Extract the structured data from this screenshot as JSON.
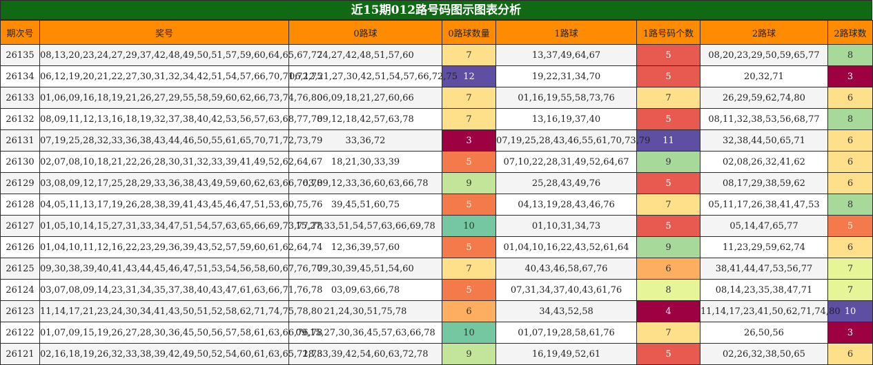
{
  "title": "近15期012路号码图示图表分析",
  "headers": [
    "期次号",
    "奖号",
    "0路球",
    "0路球数量",
    "1路球",
    "1路号码个数",
    "2路球",
    "2路球数"
  ],
  "rows": [
    {
      "issue": "26135",
      "numbers": "08,13,20,23,24,27,29,37,42,48,49,50,51,57,59,60,64,65,67,77",
      "r0": "24,27,42,48,51,57,60",
      "c0": "7",
      "r1": "13,37,49,64,67",
      "c1": "5",
      "r2": "08,20,23,29,50,59,65,77",
      "c2": "8"
    },
    {
      "issue": "26134",
      "numbers": "06,12,19,20,21,22,27,30,31,32,34,42,51,54,57,66,70,71,72,75",
      "r0": "06,12,21,27,30,42,51,54,57,66,72,75",
      "c0": "12",
      "r1": "19,22,31,34,70",
      "c1": "5",
      "r2": "20,32,71",
      "c2": "3"
    },
    {
      "issue": "26133",
      "numbers": "01,06,09,16,18,19,21,26,27,29,55,58,59,60,62,66,73,74,76,80",
      "r0": "06,09,18,21,27,60,66",
      "c0": "7",
      "r1": "01,16,19,55,58,73,76",
      "c1": "7",
      "r2": "26,29,59,62,74,80",
      "c2": "6"
    },
    {
      "issue": "26132",
      "numbers": "08,09,11,12,13,16,18,19,32,37,38,40,42,53,56,57,63,68,77,78",
      "r0": "09,12,18,42,57,63,78",
      "c0": "7",
      "r1": "13,16,19,37,40",
      "c1": "5",
      "r2": "08,11,32,38,53,56,68,77",
      "c2": "8"
    },
    {
      "issue": "26131",
      "numbers": "07,19,25,28,32,33,36,38,43,44,46,50,55,61,65,70,71,72,73,79",
      "r0": "33,36,72",
      "c0": "3",
      "r1": "07,19,25,28,43,46,55,61,70,73,79",
      "c1": "11",
      "r2": "32,38,44,50,65,71",
      "c2": "6"
    },
    {
      "issue": "26130",
      "numbers": "02,07,08,10,18,21,22,26,28,30,31,32,33,39,41,49,52,62,64,67",
      "r0": "18,21,30,33,39",
      "c0": "5",
      "r1": "07,10,22,28,31,49,52,64,67",
      "c1": "9",
      "r2": "02,08,26,32,41,62",
      "c2": "6"
    },
    {
      "issue": "26129",
      "numbers": "03,08,09,12,17,25,28,29,33,36,38,43,49,59,60,62,63,66,76,78",
      "r0": "03,09,12,33,36,60,63,66,78",
      "c0": "9",
      "r1": "25,28,43,49,76",
      "c1": "5",
      "r2": "08,17,29,38,59,62",
      "c2": "6"
    },
    {
      "issue": "26128",
      "numbers": "04,05,11,13,17,19,26,28,38,39,41,43,45,46,47,51,53,60,75,76",
      "r0": "39,45,51,60,75",
      "c0": "5",
      "r1": "04,13,19,28,43,46,76",
      "c1": "7",
      "r2": "05,11,17,26,38,41,47,53",
      "c2": "8"
    },
    {
      "issue": "26127",
      "numbers": "01,05,10,14,15,27,31,33,34,47,51,54,57,63,65,66,69,73,77,78",
      "r0": "15,27,33,51,54,57,63,66,69,78",
      "c0": "10",
      "r1": "01,10,31,34,73",
      "c1": "5",
      "r2": "05,14,47,65,77",
      "c2": "5"
    },
    {
      "issue": "26126",
      "numbers": "01,04,10,11,12,16,22,23,29,36,39,43,52,57,59,60,61,62,64,74",
      "r0": "12,36,39,57,60",
      "c0": "5",
      "r1": "01,04,10,16,22,43,52,61,64",
      "c1": "9",
      "r2": "11,23,29,59,62,74",
      "c2": "6"
    },
    {
      "issue": "26125",
      "numbers": "09,30,38,39,40,41,43,44,45,46,47,51,53,54,56,58,60,67,76,77",
      "r0": "09,30,39,45,51,54,60",
      "c0": "7",
      "r1": "40,43,46,58,67,76",
      "c1": "6",
      "r2": "38,41,44,47,53,56,77",
      "c2": "7"
    },
    {
      "issue": "26124",
      "numbers": "03,07,08,09,14,23,31,34,35,37,38,40,43,47,61,63,66,71,76,78",
      "r0": "03,09,63,66,78",
      "c0": "5",
      "r1": "07,31,34,37,40,43,61,76",
      "c1": "8",
      "r2": "08,14,23,35,38,47,71",
      "c2": "7"
    },
    {
      "issue": "26123",
      "numbers": "11,14,17,21,23,24,30,34,41,43,50,51,52,58,62,71,74,75,78,80",
      "r0": "21,24,30,51,75,78",
      "c0": "6",
      "r1": "34,43,52,58",
      "c1": "4",
      "r2": "11,14,17,23,41,50,62,71,74,80",
      "c2": "10"
    },
    {
      "issue": "26122",
      "numbers": "01,07,09,15,19,26,27,28,30,36,45,50,56,57,58,61,63,66,76,78",
      "r0": "09,15,27,30,36,45,57,63,66,78",
      "c0": "10",
      "r1": "01,07,19,28,58,61,76",
      "c1": "7",
      "r2": "26,50,56",
      "c2": "3"
    },
    {
      "issue": "26121",
      "numbers": "02,16,18,19,26,32,33,38,39,42,49,50,52,54,60,61,63,65,72,78",
      "r0": "18,33,39,42,54,60,63,72,78",
      "c0": "9",
      "r1": "16,19,49,52,61",
      "c1": "5",
      "r2": "02,26,32,38,50,65",
      "c2": "6"
    }
  ],
  "count_colors": {
    "3": {
      "bg": "#9e0142",
      "fg": "#ffffff"
    },
    "4": {
      "bg": "#9e0142",
      "fg": "#ffffff"
    },
    "5": {
      "bg": "#e85a4f",
      "fg": "#ffffff"
    },
    "5_orange": {
      "bg": "#f57a4b",
      "fg": "#ffffff"
    },
    "6": {
      "bg": "#fee08b",
      "fg": "#333333"
    },
    "6_orange": {
      "bg": "#fdae61",
      "fg": "#333333"
    },
    "7": {
      "bg": "#fee08b",
      "fg": "#333333"
    },
    "7_lime": {
      "bg": "#e6f598",
      "fg": "#333333"
    },
    "8": {
      "bg": "#a6d99a",
      "fg": "#333333"
    },
    "8_lime": {
      "bg": "#e6f598",
      "fg": "#333333"
    },
    "9": {
      "bg": "#a6d99a",
      "fg": "#333333"
    },
    "9_lime": {
      "bg": "#c2e59a",
      "fg": "#333333"
    },
    "10": {
      "bg": "#74c7a0",
      "fg": "#333333"
    },
    "10_purple": {
      "bg": "#5e4fa2",
      "fg": "#ffffff"
    },
    "11": {
      "bg": "#5e4fa2",
      "fg": "#ffffff"
    },
    "12": {
      "bg": "#5e4fa2",
      "fg": "#ffffff"
    }
  },
  "cell_colors": [
    {
      "c0": "7",
      "c1": "5",
      "c2": "8"
    },
    {
      "c0": "12",
      "c1": "5",
      "c2": "3"
    },
    {
      "c0": "7",
      "c1": "7",
      "c2": "6"
    },
    {
      "c0": "7",
      "c1": "5",
      "c2": "8"
    },
    {
      "c0": "3",
      "c1": "11",
      "c2": "6"
    },
    {
      "c0": "5_orange",
      "c1": "9",
      "c2": "6"
    },
    {
      "c0": "9_lime",
      "c1": "5",
      "c2": "6"
    },
    {
      "c0": "5_orange",
      "c1": "7",
      "c2": "8"
    },
    {
      "c0": "10",
      "c1": "5",
      "c2": "5_orange"
    },
    {
      "c0": "5_orange",
      "c1": "9",
      "c2": "6"
    },
    {
      "c0": "7",
      "c1": "6_orange",
      "c2": "7_lime"
    },
    {
      "c0": "5_orange",
      "c1": "8_lime",
      "c2": "7_lime"
    },
    {
      "c0": "6_orange",
      "c1": "4",
      "c2": "10_purple"
    },
    {
      "c0": "10",
      "c1": "7",
      "c2": "3"
    },
    {
      "c0": "9_lime",
      "c1": "5",
      "c2": "6"
    }
  ]
}
